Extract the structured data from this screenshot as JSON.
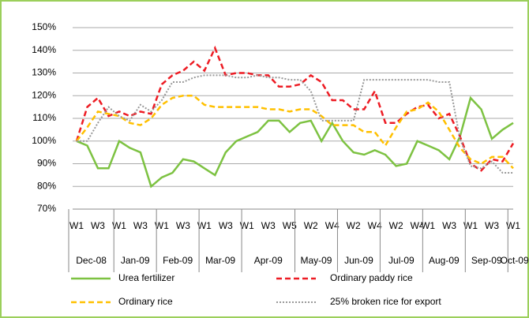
{
  "chart_data": {
    "type": "line",
    "categories": [
      "W1",
      null,
      "W3",
      null,
      "W1",
      null,
      "W3",
      null,
      "W1",
      null,
      "W3",
      null,
      "W1",
      null,
      "W3",
      null,
      "W1",
      null,
      "W3",
      null,
      "W5",
      null,
      "W2",
      null,
      "W4",
      null,
      "W2",
      null,
      "W4",
      null,
      "W2",
      null,
      "W4",
      "W1",
      null,
      "W3",
      null,
      "W1",
      null,
      "W3",
      null,
      "W1"
    ],
    "months": [
      "Dec-08",
      "Dec-08",
      "Dec-08",
      "Dec-08",
      "Jan-09",
      "Jan-09",
      "Jan-09",
      "Jan-09",
      "Feb-09",
      "Feb-09",
      "Feb-09",
      "Feb-09",
      "Mar-09",
      "Mar-09",
      "Mar-09",
      "Mar-09",
      "Apr-09",
      "Apr-09",
      "Apr-09",
      "Apr-09",
      "Apr-09",
      "May-09",
      "May-09",
      "May-09",
      "May-09",
      "Jun-09",
      "Jun-09",
      "Jun-09",
      "Jun-09",
      "Jul-09",
      "Jul-09",
      "Jul-09",
      "Jul-09",
      "Aug-09",
      "Aug-09",
      "Aug-09",
      "Aug-09",
      "Sep-09",
      "Sep-09",
      "Sep-09",
      "Sep-09",
      "Oct-09"
    ],
    "series": [
      {
        "name": "Urea fertilizer",
        "color": "#7dc242",
        "dash": "solid",
        "values": [
          100,
          98,
          88,
          88,
          100,
          97,
          95,
          80,
          84,
          86,
          92,
          91,
          88,
          85,
          95,
          100,
          102,
          104,
          109,
          109,
          104,
          108,
          109,
          100,
          108,
          100,
          95,
          94,
          96,
          94,
          89,
          90,
          100,
          98,
          96,
          92,
          102,
          119,
          114,
          101,
          105,
          108
        ]
      },
      {
        "name": "Ordinary paddy rice",
        "color": "#ed1c24",
        "dash": "dashed",
        "values": [
          100,
          115,
          119,
          111,
          113,
          111,
          113,
          112,
          125,
          129,
          131,
          135,
          131,
          141,
          129,
          130,
          130,
          129,
          129,
          124,
          124,
          125,
          129,
          126,
          118,
          118,
          114,
          114,
          122,
          108,
          108,
          112,
          115,
          116,
          110,
          112,
          102,
          90,
          87,
          92,
          91,
          99
        ]
      },
      {
        "name": "Ordinary rice",
        "color": "#ffc000",
        "dash": "dashed",
        "values": [
          100,
          106,
          113,
          112,
          111,
          108,
          107,
          110,
          116,
          119,
          120,
          120,
          116,
          115,
          115,
          115,
          115,
          115,
          114,
          114,
          113,
          114,
          114,
          111,
          107,
          107,
          107,
          104,
          104,
          98,
          106,
          113,
          114,
          117,
          113,
          105,
          97,
          92,
          90,
          93,
          93,
          88
        ]
      },
      {
        "name": "25% broken rice for export",
        "color": "#999999",
        "dash": "dotted",
        "values": [
          100,
          100,
          108,
          115,
          111,
          109,
          116,
          113,
          118,
          126,
          126,
          128,
          129,
          129,
          129,
          128,
          128,
          129,
          128,
          128,
          127,
          127,
          122,
          109,
          109,
          109,
          109,
          127,
          127,
          127,
          127,
          127,
          127,
          127,
          126,
          126,
          101,
          89,
          88,
          91,
          86,
          86
        ]
      }
    ],
    "ylim": [
      70,
      150
    ],
    "yticks": [
      {
        "value": 70,
        "label": "70%"
      },
      {
        "value": 80,
        "label": "80%"
      },
      {
        "value": 90,
        "label": "90%"
      },
      {
        "value": 100,
        "label": "100%"
      },
      {
        "value": 110,
        "label": "110%"
      },
      {
        "value": 120,
        "label": "120%"
      },
      {
        "value": 130,
        "label": "130%"
      },
      {
        "value": 140,
        "label": "140%"
      },
      {
        "value": 150,
        "label": "150%"
      }
    ],
    "grid": true
  }
}
